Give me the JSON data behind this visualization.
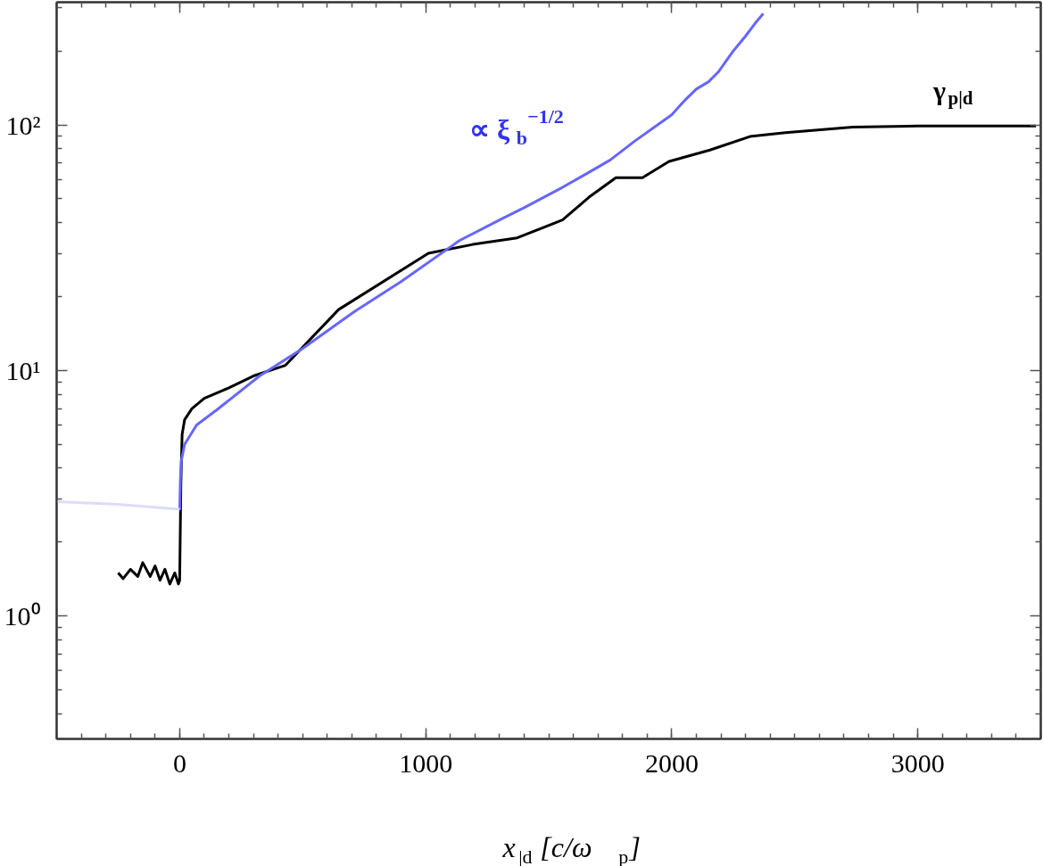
{
  "chart_data": {
    "type": "line",
    "xlabel": "x$_{|d}$ [c/ω$_{p}$]",
    "log": "y",
    "grid": false,
    "line_style": "solid",
    "marker": "none",
    "xlim": [
      -500,
      3500
    ],
    "xticks": [
      0,
      1000,
      2000,
      3000
    ],
    "ylim": [
      0.316,
      316
    ],
    "yticks": [
      {
        "value": 1,
        "label": "10⁰"
      },
      {
        "value": 10,
        "label": "10¹"
      },
      {
        "value": 100,
        "label": "10²"
      }
    ],
    "series": [
      {
        "color": "#dcdcf8",
        "x": [
          -500,
          -250,
          0
        ],
        "values": [
          2.92,
          2.85,
          2.72
        ]
      },
      {
        "name": "∝ ξ$_{b}$$^{−1/2}$",
        "color": "#6666ff",
        "x": [
          0,
          3,
          7,
          20,
          69,
          150,
          325,
          500,
          711,
          900,
          1137,
          1300,
          1400,
          1556,
          1650,
          1750,
          1850,
          1917,
          2000,
          2050,
          2100,
          2150,
          2191,
          2250,
          2300,
          2340,
          2372
        ],
        "values": [
          2.7,
          3.6,
          4.3,
          5.0,
          6.0,
          6.9,
          9.5,
          12.3,
          17.4,
          23,
          33.8,
          41,
          46,
          55.7,
          63,
          72,
          86,
          96,
          110,
          125,
          140,
          150,
          165,
          200,
          230,
          260,
          284
        ]
      },
      {
        "name": "γ$_{p|d}$",
        "color": "#000000",
        "x": [
          -250,
          -230,
          -200,
          -170,
          -150,
          -120,
          -100,
          -80,
          -60,
          -40,
          -20,
          -5,
          0,
          5,
          10,
          20,
          50,
          100,
          200,
          300,
          430,
          646,
          1011,
          1191,
          1372,
          1556,
          1664,
          1773,
          1881,
          1989,
          2155,
          2318,
          2462,
          2736,
          3000,
          3480
        ],
        "values": [
          1.5,
          1.42,
          1.55,
          1.45,
          1.65,
          1.45,
          1.6,
          1.4,
          1.55,
          1.35,
          1.5,
          1.35,
          1.4,
          3.5,
          5.5,
          6.3,
          7.0,
          7.7,
          8.5,
          9.5,
          10.5,
          17.7,
          30,
          32.6,
          34.7,
          41,
          50.8,
          61,
          61,
          71,
          79,
          89.7,
          93,
          98,
          99,
          99
        ]
      }
    ]
  }
}
